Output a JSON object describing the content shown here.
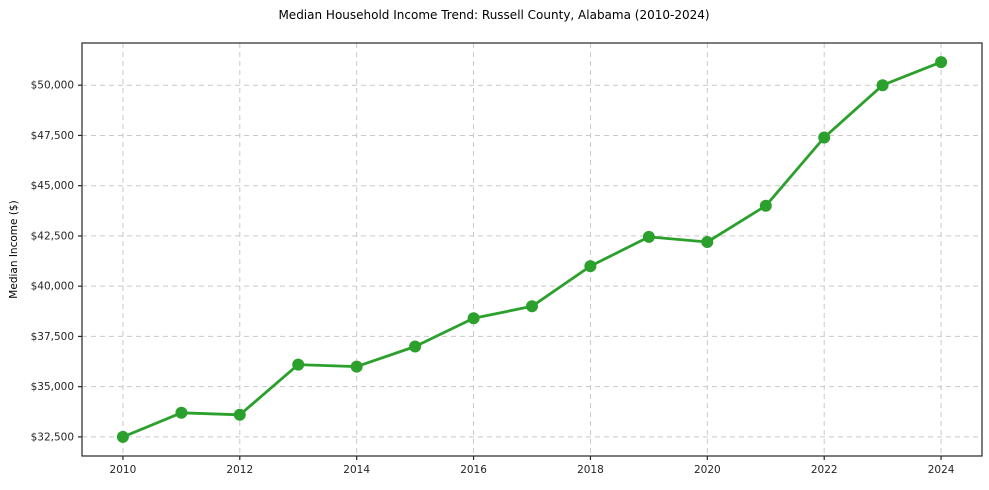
{
  "chart_data": {
    "type": "line",
    "title": "Median Household Income Trend: Russell County, Alabama (2010-2024)",
    "xlabel": "",
    "ylabel": "Median Income ($)",
    "x": [
      2010,
      2011,
      2012,
      2013,
      2014,
      2015,
      2016,
      2017,
      2018,
      2019,
      2020,
      2021,
      2022,
      2023,
      2024
    ],
    "y": [
      32500,
      33700,
      33600,
      36100,
      36000,
      37000,
      38400,
      39000,
      41000,
      42450,
      42200,
      44000,
      47400,
      50000,
      51150
    ],
    "series_name": "Median Household Income",
    "xlim": [
      2009.3,
      2024.7
    ],
    "ylim": [
      31550,
      52100
    ],
    "xticks": {
      "values": [
        2010,
        2012,
        2014,
        2016,
        2018,
        2020,
        2022,
        2024
      ],
      "labels": [
        "2010",
        "2012",
        "2014",
        "2016",
        "2018",
        "2020",
        "2022",
        "2024"
      ]
    },
    "yticks": {
      "values": [
        32500,
        35000,
        37500,
        40000,
        42500,
        45000,
        47500,
        50000
      ],
      "labels": [
        "$32,500",
        "$35,000",
        "$37,500",
        "$40,000",
        "$42,500",
        "$45,000",
        "$47,500",
        "$50,000"
      ]
    },
    "grid": true,
    "legend_visible": false,
    "colors": {
      "line": "#2ca02c",
      "marker": "#2ca02c",
      "grid": "#c9c9c9",
      "spine": "#262626",
      "background": "#ffffff"
    },
    "marker_style": "circle",
    "line_width": 2.8,
    "marker_radius": 6
  }
}
